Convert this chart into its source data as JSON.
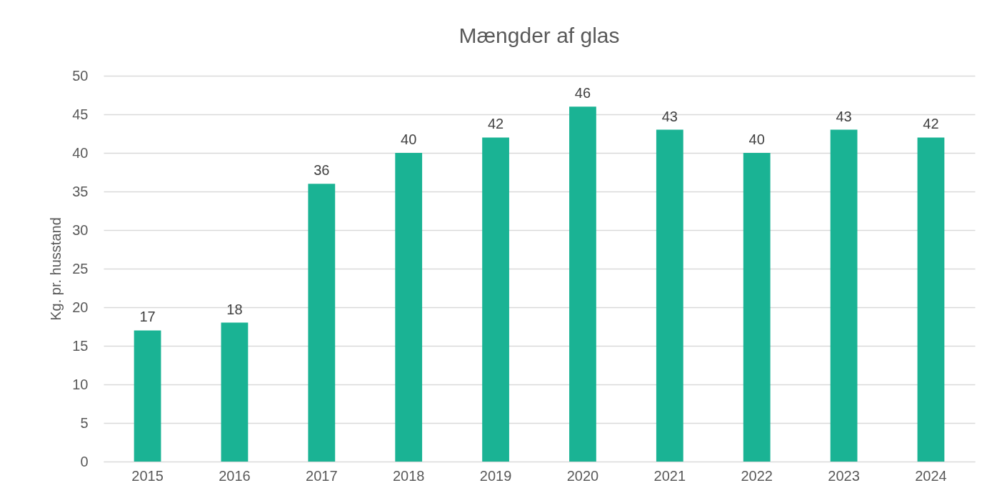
{
  "chart_data": {
    "type": "bar",
    "title": "Mængder af glas",
    "ylabel": "Kg. pr. husstand",
    "categories": [
      "2015",
      "2016",
      "2017",
      "2018",
      "2019",
      "2020",
      "2021",
      "2022",
      "2023",
      "2024"
    ],
    "values": [
      17,
      18,
      36,
      40,
      42,
      46,
      43,
      40,
      43,
      42
    ],
    "color": "#1ab394",
    "ylim": [
      0,
      50
    ],
    "yticks": [
      0,
      5,
      10,
      15,
      20,
      25,
      30,
      35,
      40,
      45,
      50
    ],
    "grid": "y",
    "data_labels": true
  }
}
